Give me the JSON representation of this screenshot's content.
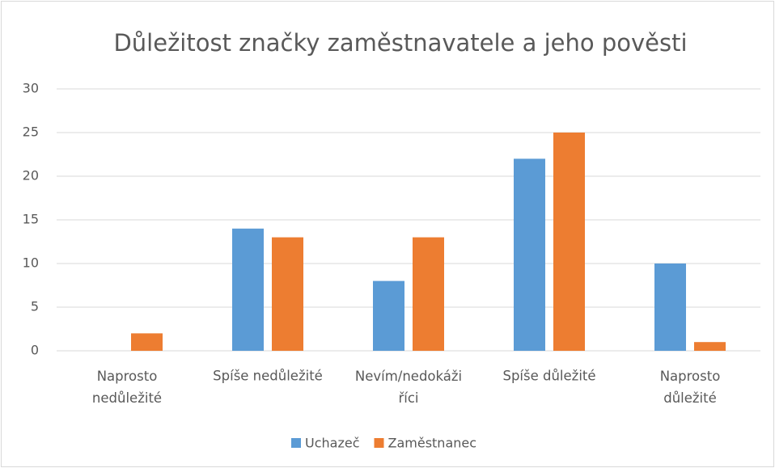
{
  "chart_data": {
    "type": "bar",
    "title": "Důležitost značky zaměstnavatele a jeho pověsti",
    "categories": [
      "Naprosto nedůležité",
      "Spíše nedůležité",
      "Nevím/nedokáži říci",
      "Spíše důležité",
      "Naprosto důležité"
    ],
    "series": [
      {
        "name": "Uchazeč",
        "color": "#5b9bd5",
        "values": [
          0,
          14,
          8,
          22,
          10
        ]
      },
      {
        "name": "Zaměstnanec",
        "color": "#ed7d31",
        "values": [
          2,
          13,
          13,
          25,
          1
        ]
      }
    ],
    "ylim": [
      0,
      30
    ],
    "yticks": [
      0,
      5,
      10,
      15,
      20,
      25,
      30
    ],
    "grid": true,
    "legend": "bottom"
  }
}
